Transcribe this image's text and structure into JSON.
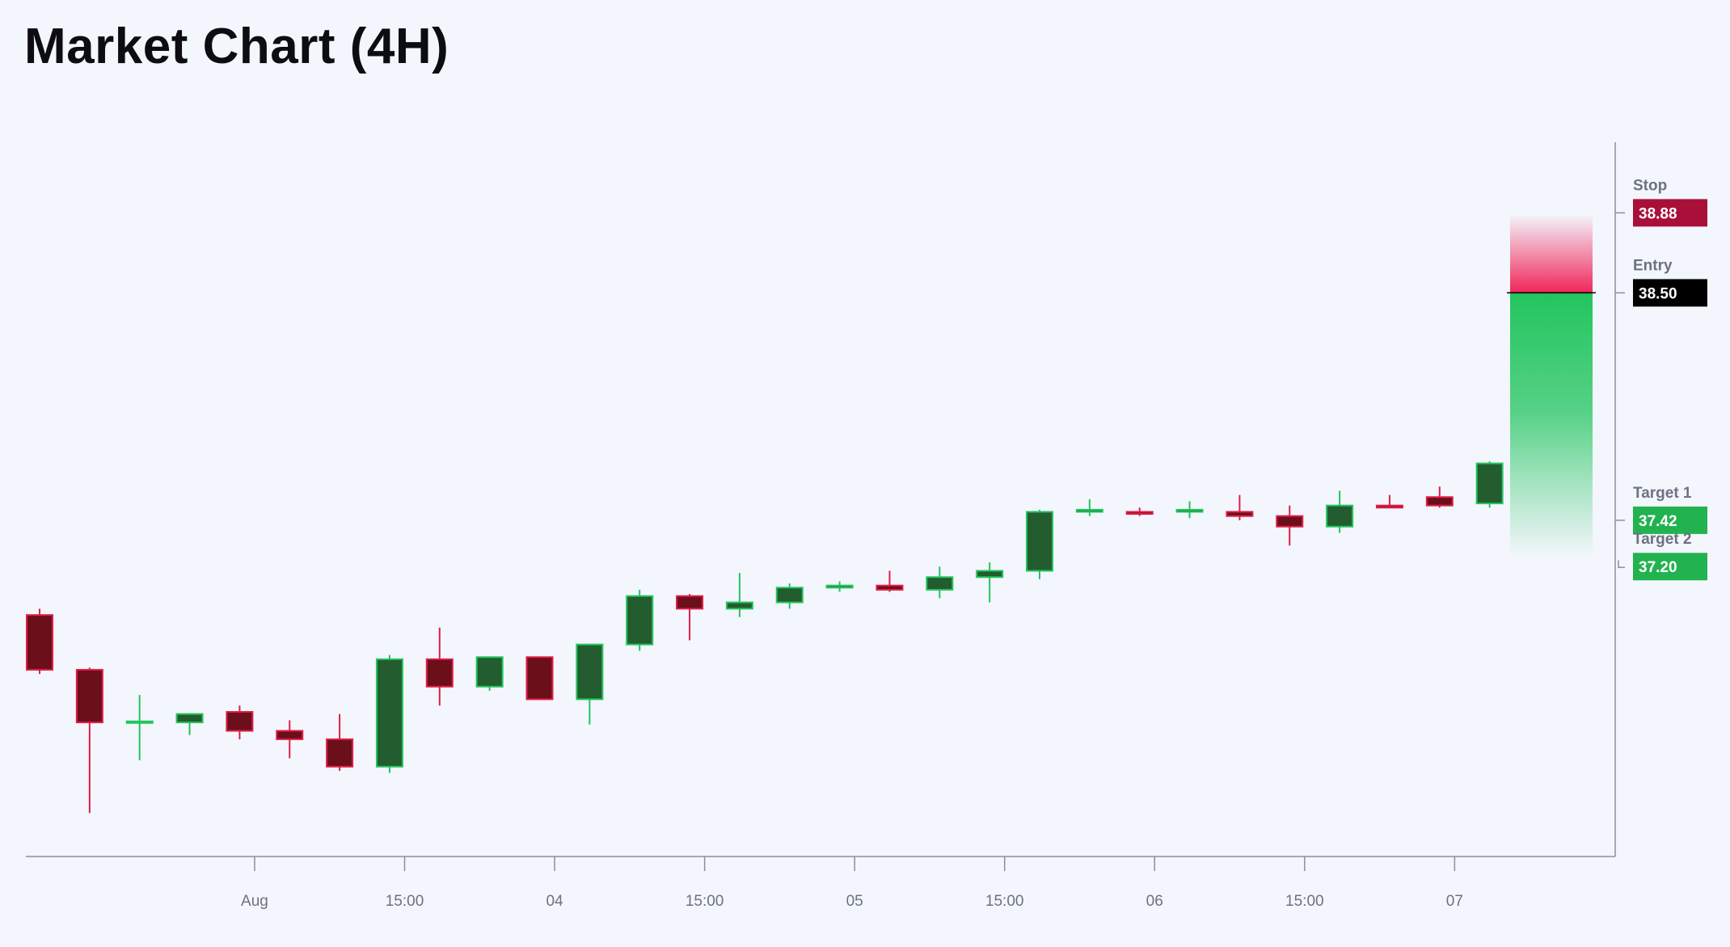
{
  "title": "Market Chart (4H)",
  "colors": {
    "background": "#f3f6fc",
    "axis": "#8b8f99",
    "up_body": "#235c2f",
    "up_border": "#22c55e",
    "down_body": "#6b0f1a",
    "down_border": "#e11d48",
    "stop_badge": "#a8103a",
    "entry_badge": "#000000",
    "target_badge": "#22b350",
    "profit_zone_top": "#22c55e",
    "risk_zone_bottom": "#f0265a"
  },
  "chart_data": {
    "type": "candlestick",
    "timeframe": "4H",
    "ylim": [
      35.9,
      39.2
    ],
    "x_tick_labels": [
      "Aug",
      "15:00",
      "04",
      "15:00",
      "05",
      "15:00",
      "06",
      "15:00",
      "07"
    ],
    "x_tick_candle_index": [
      4.3,
      7.3,
      10.3,
      13.3,
      16.3,
      19.3,
      22.3,
      25.3,
      28.3
    ],
    "candles": [
      {
        "open": 36.97,
        "high": 37.0,
        "low": 36.69,
        "close": 36.71
      },
      {
        "open": 36.71,
        "high": 36.72,
        "low": 36.03,
        "close": 36.46
      },
      {
        "open": 36.46,
        "high": 36.59,
        "low": 36.28,
        "close": 36.465
      },
      {
        "open": 36.46,
        "high": 36.5,
        "low": 36.4,
        "close": 36.5
      },
      {
        "open": 36.51,
        "high": 36.54,
        "low": 36.38,
        "close": 36.42
      },
      {
        "open": 36.42,
        "high": 36.47,
        "low": 36.29,
        "close": 36.38
      },
      {
        "open": 36.38,
        "high": 36.5,
        "low": 36.23,
        "close": 36.25
      },
      {
        "open": 36.25,
        "high": 36.78,
        "low": 36.22,
        "close": 36.76
      },
      {
        "open": 36.76,
        "high": 36.91,
        "low": 36.54,
        "close": 36.63
      },
      {
        "open": 36.63,
        "high": 36.77,
        "low": 36.61,
        "close": 36.77
      },
      {
        "open": 36.77,
        "high": 36.77,
        "low": 36.57,
        "close": 36.57
      },
      {
        "open": 36.57,
        "high": 36.83,
        "low": 36.45,
        "close": 36.83
      },
      {
        "open": 36.83,
        "high": 37.09,
        "low": 36.8,
        "close": 37.06
      },
      {
        "open": 37.06,
        "high": 37.07,
        "low": 36.85,
        "close": 37.0
      },
      {
        "open": 37.0,
        "high": 37.17,
        "low": 36.96,
        "close": 37.03
      },
      {
        "open": 37.03,
        "high": 37.12,
        "low": 37.0,
        "close": 37.1
      },
      {
        "open": 37.1,
        "high": 37.13,
        "low": 37.08,
        "close": 37.11
      },
      {
        "open": 37.11,
        "high": 37.18,
        "low": 37.08,
        "close": 37.09
      },
      {
        "open": 37.09,
        "high": 37.2,
        "low": 37.05,
        "close": 37.15
      },
      {
        "open": 37.15,
        "high": 37.22,
        "low": 37.03,
        "close": 37.18
      },
      {
        "open": 37.18,
        "high": 37.47,
        "low": 37.14,
        "close": 37.46
      },
      {
        "open": 37.46,
        "high": 37.52,
        "low": 37.44,
        "close": 37.47
      },
      {
        "open": 37.46,
        "high": 37.48,
        "low": 37.44,
        "close": 37.45
      },
      {
        "open": 37.46,
        "high": 37.51,
        "low": 37.43,
        "close": 37.47
      },
      {
        "open": 37.46,
        "high": 37.54,
        "low": 37.42,
        "close": 37.44
      },
      {
        "open": 37.44,
        "high": 37.49,
        "low": 37.3,
        "close": 37.39
      },
      {
        "open": 37.39,
        "high": 37.56,
        "low": 37.36,
        "close": 37.49
      },
      {
        "open": 37.49,
        "high": 37.54,
        "low": 37.48,
        "close": 37.48
      },
      {
        "open": 37.53,
        "high": 37.58,
        "low": 37.48,
        "close": 37.49
      },
      {
        "open": 37.5,
        "high": 37.7,
        "low": 37.48,
        "close": 37.69
      }
    ],
    "trade_levels": [
      {
        "label": "Stop",
        "value": "38.88",
        "price": 38.88,
        "type": "stop"
      },
      {
        "label": "Entry",
        "value": "38.50",
        "price": 38.5,
        "type": "entry"
      },
      {
        "label": "Target 1",
        "value": "37.42",
        "price": 37.42,
        "type": "target"
      },
      {
        "label": "Target 2",
        "value": "37.20",
        "price": 37.2,
        "type": "target"
      }
    ]
  }
}
